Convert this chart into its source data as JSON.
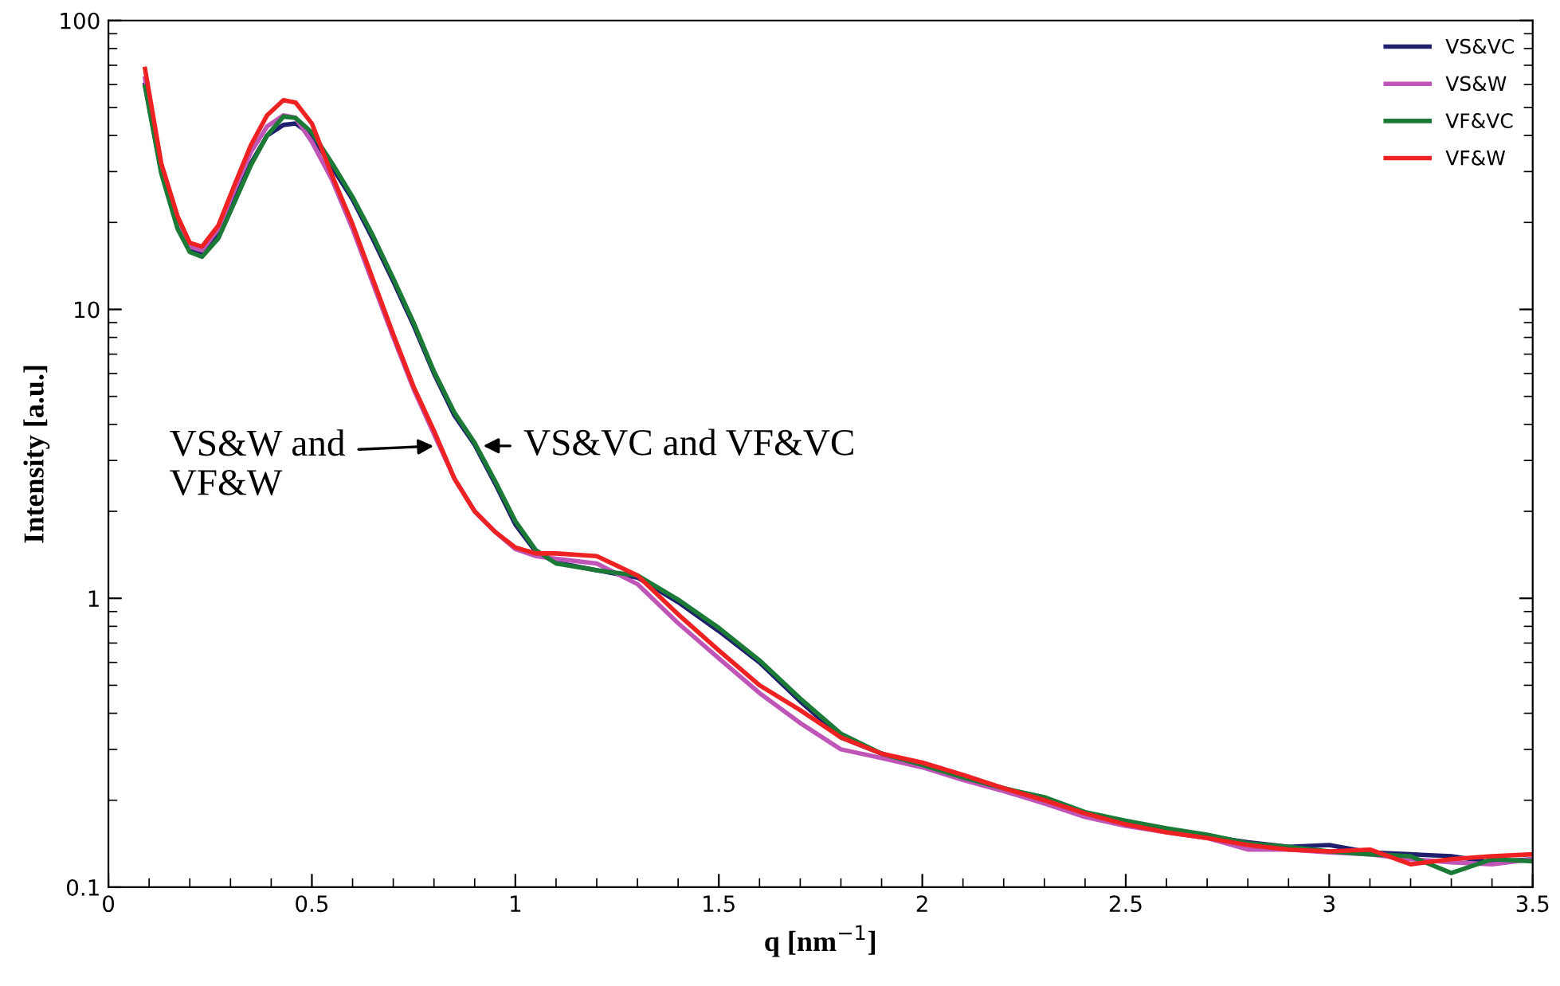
{
  "chart_data": {
    "type": "line",
    "xlabel": "q [nm$^{−1}$]",
    "ylabel": "Intensity [a.u.]",
    "x": [
      0.09,
      0.13,
      0.17,
      0.2,
      0.23,
      0.27,
      0.31,
      0.35,
      0.39,
      0.43,
      0.46,
      0.5,
      0.55,
      0.6,
      0.65,
      0.7,
      0.75,
      0.8,
      0.85,
      0.9,
      0.95,
      1.0,
      1.05,
      1.1,
      1.2,
      1.3,
      1.4,
      1.5,
      1.6,
      1.7,
      1.8,
      1.9,
      2.0,
      2.1,
      2.2,
      2.3,
      2.4,
      2.5,
      2.6,
      2.7,
      2.8,
      2.9,
      3.0,
      3.1,
      3.2,
      3.3,
      3.4,
      3.5
    ],
    "series": [
      {
        "name": "VS&VC",
        "color": "#1f1f6e",
        "values": [
          60,
          30,
          19.5,
          16,
          15.5,
          18,
          24,
          32,
          40,
          43.5,
          44,
          40,
          31,
          24,
          17.5,
          12.5,
          8.8,
          6.0,
          4.3,
          3.4,
          2.5,
          1.8,
          1.45,
          1.33,
          1.25,
          1.18,
          0.97,
          0.77,
          0.6,
          0.44,
          0.33,
          0.29,
          0.265,
          0.24,
          0.22,
          0.2,
          0.18,
          0.168,
          0.158,
          0.15,
          0.143,
          0.138,
          0.14,
          0.132,
          0.13,
          0.128,
          0.122,
          0.125
        ]
      },
      {
        "name": "VS&W",
        "color": "#c055b8",
        "values": [
          63,
          31,
          20,
          16.5,
          16,
          19,
          26,
          35,
          43,
          47,
          46,
          38,
          28,
          19,
          12.3,
          8.0,
          5.3,
          3.7,
          2.6,
          2.0,
          1.7,
          1.48,
          1.4,
          1.37,
          1.32,
          1.12,
          0.82,
          0.62,
          0.47,
          0.37,
          0.3,
          0.28,
          0.26,
          0.235,
          0.215,
          0.195,
          0.175,
          0.163,
          0.155,
          0.148,
          0.135,
          0.135,
          0.132,
          0.13,
          0.125,
          0.122,
          0.12,
          0.125
        ]
      },
      {
        "name": "VF&VC",
        "color": "#1a7a36",
        "values": [
          59,
          29.5,
          19,
          15.8,
          15.2,
          17.6,
          23.5,
          31.5,
          40,
          46.5,
          46,
          41,
          32,
          24.5,
          18,
          12.8,
          9.0,
          6.1,
          4.4,
          3.45,
          2.55,
          1.85,
          1.47,
          1.32,
          1.25,
          1.2,
          0.99,
          0.79,
          0.61,
          0.45,
          0.34,
          0.29,
          0.265,
          0.24,
          0.22,
          0.205,
          0.182,
          0.17,
          0.16,
          0.152,
          0.142,
          0.138,
          0.133,
          0.13,
          0.128,
          0.112,
          0.125,
          0.123
        ]
      },
      {
        "name": "VF&W",
        "color": "#ee2222",
        "values": [
          68,
          32,
          21,
          17,
          16.5,
          19.5,
          27,
          37,
          47,
          53,
          52,
          44,
          29,
          19.7,
          12.7,
          8.2,
          5.4,
          3.8,
          2.6,
          2.0,
          1.7,
          1.5,
          1.43,
          1.43,
          1.4,
          1.2,
          0.88,
          0.66,
          0.5,
          0.41,
          0.33,
          0.29,
          0.27,
          0.245,
          0.22,
          0.2,
          0.18,
          0.165,
          0.155,
          0.148,
          0.14,
          0.135,
          0.133,
          0.135,
          0.12,
          0.125,
          0.128,
          0.13
        ]
      }
    ],
    "xlim": [
      0,
      3.5
    ],
    "xticks": [
      0,
      0.5,
      1,
      1.5,
      2,
      2.5,
      3,
      3.5
    ],
    "ylim": [
      0.1,
      100
    ],
    "yticks": [
      0.1,
      1,
      10,
      100
    ],
    "log": "y",
    "legend": "top right",
    "grid": false,
    "marker": "none",
    "line_style": "solid",
    "annotations": [
      {
        "text": "VS&W and\nVF&W",
        "x": 0.81,
        "y": 3.37
      },
      {
        "text": "VS&VC and VF&VC",
        "x": 0.91,
        "y": 3.37
      }
    ]
  }
}
